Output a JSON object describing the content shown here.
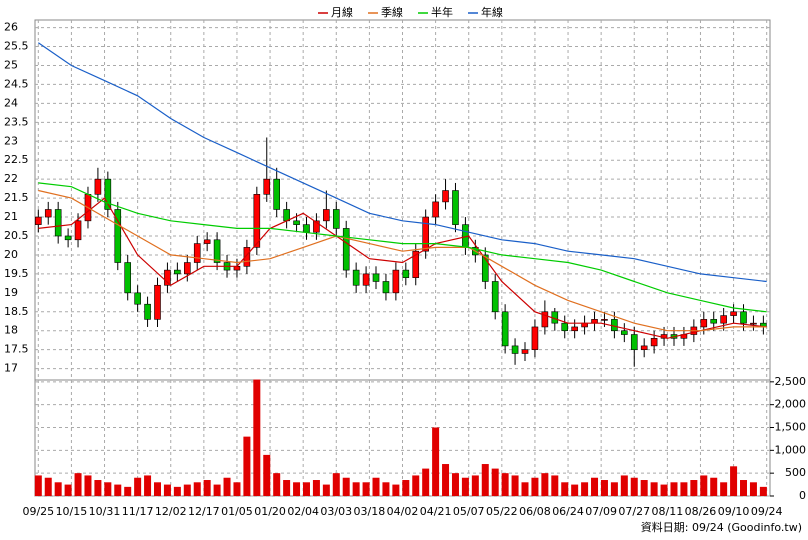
{
  "chart_data": {
    "type": "candlestick",
    "legend": "top",
    "grid": true,
    "footer": "資料日期: 09/24  (Goodinfo.tw)",
    "xlim": [
      -1,
      221
    ],
    "xticks": [
      {
        "value": 0,
        "label": "09/25"
      },
      {
        "value": 10,
        "label": "10/15"
      },
      {
        "value": 20,
        "label": "10/31"
      },
      {
        "value": 30,
        "label": "11/17"
      },
      {
        "value": 40,
        "label": "12/02"
      },
      {
        "value": 50,
        "label": "12/17"
      },
      {
        "value": 60,
        "label": "01/05"
      },
      {
        "value": 70,
        "label": "01/20"
      },
      {
        "value": 80,
        "label": "02/04"
      },
      {
        "value": 90,
        "label": "03/03"
      },
      {
        "value": 100,
        "label": "03/18"
      },
      {
        "value": 110,
        "label": "04/02"
      },
      {
        "value": 120,
        "label": "04/21"
      },
      {
        "value": 130,
        "label": "05/07"
      },
      {
        "value": 140,
        "label": "05/22"
      },
      {
        "value": 150,
        "label": "06/08"
      },
      {
        "value": 160,
        "label": "06/24"
      },
      {
        "value": 170,
        "label": "07/09"
      },
      {
        "value": 180,
        "label": "07/27"
      },
      {
        "value": 190,
        "label": "08/11"
      },
      {
        "value": 200,
        "label": "08/26"
      },
      {
        "value": 210,
        "label": "09/10"
      },
      {
        "value": 220,
        "label": "09/24"
      }
    ],
    "ylim": [
      16.7,
      26.2
    ],
    "yticks": [
      17,
      17.5,
      18,
      18.5,
      19,
      19.5,
      20,
      20.5,
      21,
      21.5,
      22,
      22.5,
      23,
      23.5,
      24,
      24.5,
      25,
      25.5,
      26
    ],
    "y2lim": [
      0,
      2540
    ],
    "y2ticks": [
      0,
      500,
      {
        "value": 1000,
        "label": "1,000"
      },
      {
        "value": 1500,
        "label": "1,500"
      },
      {
        "value": 2000,
        "label": "2,000"
      },
      {
        "value": 2500,
        "label": "2,500"
      }
    ],
    "candles": {
      "up_color": "#ff0000",
      "down_color": "#00c000",
      "x": [
        0,
        3,
        6,
        9,
        12,
        15,
        18,
        21,
        24,
        27,
        30,
        33,
        36,
        39,
        42,
        45,
        48,
        51,
        54,
        57,
        60,
        63,
        66,
        69,
        72,
        75,
        78,
        81,
        84,
        87,
        90,
        93,
        96,
        99,
        102,
        105,
        108,
        111,
        114,
        117,
        120,
        123,
        126,
        129,
        132,
        135,
        138,
        141,
        144,
        147,
        150,
        153,
        156,
        159,
        162,
        165,
        168,
        171,
        174,
        177,
        180,
        183,
        186,
        189,
        192,
        195,
        198,
        201,
        204,
        207,
        210,
        213,
        216,
        219
      ],
      "open": [
        20.8,
        21.0,
        21.2,
        20.5,
        20.4,
        20.9,
        21.6,
        22.0,
        21.2,
        19.8,
        19.0,
        18.7,
        18.3,
        19.2,
        19.6,
        19.5,
        19.8,
        20.3,
        20.4,
        19.8,
        19.6,
        19.7,
        20.2,
        21.6,
        22.0,
        21.2,
        20.9,
        20.8,
        20.6,
        20.9,
        21.2,
        20.7,
        19.6,
        19.2,
        19.5,
        19.3,
        19.0,
        19.6,
        19.4,
        20.1,
        21.0,
        21.4,
        21.7,
        20.8,
        20.2,
        20.0,
        19.3,
        18.5,
        17.6,
        17.4,
        17.5,
        18.1,
        18.5,
        18.2,
        18.0,
        18.1,
        18.2,
        18.3,
        18.3,
        18.0,
        17.9,
        17.5,
        17.6,
        17.8,
        17.9,
        17.8,
        17.9,
        18.1,
        18.3,
        18.2,
        18.4,
        18.5,
        18.2,
        18.2
      ],
      "high": [
        21.2,
        21.4,
        21.4,
        20.7,
        21.1,
        21.8,
        22.3,
        22.2,
        21.4,
        20.0,
        19.2,
        18.9,
        19.4,
        19.8,
        19.8,
        20.0,
        20.5,
        20.6,
        20.6,
        20.0,
        19.9,
        20.4,
        21.8,
        23.1,
        22.3,
        21.4,
        21.1,
        21.0,
        21.1,
        21.7,
        21.4,
        20.9,
        19.8,
        19.7,
        19.7,
        19.5,
        19.8,
        19.8,
        20.3,
        21.2,
        21.6,
        22.0,
        21.9,
        21.0,
        20.4,
        20.2,
        19.5,
        18.7,
        17.8,
        17.7,
        18.3,
        18.8,
        18.6,
        18.4,
        18.3,
        18.4,
        18.5,
        18.5,
        18.5,
        18.2,
        18.1,
        17.8,
        18.0,
        18.1,
        18.1,
        18.1,
        18.3,
        18.5,
        18.5,
        18.6,
        18.7,
        18.7,
        18.4,
        18.4
      ],
      "low": [
        20.6,
        20.8,
        20.3,
        20.2,
        20.2,
        20.7,
        21.4,
        21.0,
        19.6,
        18.8,
        18.5,
        18.1,
        18.1,
        19.0,
        19.3,
        19.3,
        19.6,
        20.1,
        19.6,
        19.4,
        19.4,
        19.5,
        20.0,
        21.4,
        21.0,
        20.7,
        20.6,
        20.4,
        20.4,
        20.7,
        20.5,
        19.4,
        19.0,
        19.0,
        19.1,
        18.8,
        18.8,
        19.2,
        19.2,
        19.9,
        20.8,
        21.2,
        20.6,
        20.0,
        19.8,
        19.1,
        18.3,
        17.4,
        17.1,
        17.2,
        17.3,
        17.9,
        18.0,
        17.8,
        17.8,
        17.9,
        18.0,
        18.1,
        17.8,
        17.7,
        17.05,
        17.3,
        17.4,
        17.6,
        17.6,
        17.6,
        17.7,
        17.9,
        18.0,
        18.0,
        18.2,
        18.0,
        18.0,
        17.9
      ],
      "close": [
        21.0,
        21.2,
        20.5,
        20.4,
        20.9,
        21.6,
        22.0,
        21.2,
        19.8,
        19.0,
        18.7,
        18.3,
        19.2,
        19.6,
        19.5,
        19.8,
        20.3,
        20.4,
        19.8,
        19.6,
        19.7,
        20.2,
        21.6,
        22.0,
        21.2,
        20.9,
        20.8,
        20.6,
        20.9,
        21.2,
        20.7,
        19.6,
        19.2,
        19.5,
        19.3,
        19.0,
        19.6,
        19.4,
        20.1,
        21.0,
        21.4,
        21.7,
        20.8,
        20.2,
        20.0,
        19.3,
        18.5,
        17.6,
        17.4,
        17.5,
        18.1,
        18.5,
        18.2,
        18.0,
        18.1,
        18.2,
        18.3,
        18.3,
        18.0,
        17.9,
        17.5,
        17.6,
        17.8,
        17.9,
        17.8,
        17.9,
        18.1,
        18.3,
        18.2,
        18.4,
        18.5,
        18.2,
        18.2,
        18.1
      ]
    },
    "volume": {
      "color": "#e00000",
      "axis": "y2",
      "values": [
        450,
        400,
        300,
        250,
        500,
        450,
        350,
        300,
        250,
        200,
        400,
        450,
        300,
        250,
        200,
        250,
        300,
        350,
        250,
        400,
        300,
        1300,
        2550,
        900,
        500,
        350,
        300,
        300,
        350,
        250,
        500,
        400,
        300,
        300,
        400,
        300,
        250,
        350,
        450,
        600,
        1500,
        700,
        500,
        400,
        450,
        700,
        600,
        500,
        450,
        300,
        400,
        500,
        450,
        300,
        250,
        300,
        400,
        350,
        300,
        450,
        400,
        350,
        300,
        250,
        300,
        300,
        350,
        450,
        400,
        300,
        650,
        350,
        300,
        200
      ]
    },
    "x": [
      0,
      10,
      20,
      30,
      40,
      50,
      60,
      70,
      80,
      90,
      100,
      110,
      120,
      130,
      140,
      150,
      160,
      170,
      180,
      190,
      200,
      210,
      220
    ],
    "series": [
      {
        "name": "月線",
        "color": "#cc0000",
        "values": [
          20.7,
          20.8,
          21.5,
          20.0,
          19.2,
          19.7,
          19.7,
          20.7,
          21.1,
          20.5,
          19.9,
          19.8,
          20.3,
          20.5,
          19.3,
          18.5,
          18.2,
          18.2,
          18.0,
          17.8,
          18.0,
          18.2,
          18.1
        ]
      },
      {
        "name": "季線",
        "color": "#e07020",
        "values": [
          21.7,
          21.5,
          21.0,
          20.5,
          20.0,
          19.9,
          19.8,
          19.9,
          20.2,
          20.5,
          20.3,
          20.1,
          20.2,
          20.2,
          19.7,
          19.2,
          18.8,
          18.5,
          18.2,
          18.0,
          18.0,
          18.1,
          18.1
        ]
      },
      {
        "name": "半年",
        "color": "#00cc00",
        "values": [
          21.9,
          21.8,
          21.4,
          21.1,
          20.9,
          20.8,
          20.7,
          20.7,
          20.6,
          20.5,
          20.4,
          20.3,
          20.3,
          20.2,
          20.0,
          19.9,
          19.8,
          19.6,
          19.3,
          19.0,
          18.8,
          18.6,
          18.5
        ]
      },
      {
        "name": "年線",
        "color": "#1a5fc8",
        "values": [
          25.6,
          25.0,
          24.6,
          24.2,
          23.6,
          23.1,
          22.7,
          22.3,
          21.9,
          21.5,
          21.1,
          20.9,
          20.8,
          20.6,
          20.4,
          20.3,
          20.1,
          20.0,
          19.9,
          19.7,
          19.5,
          19.4,
          19.3
        ]
      }
    ]
  }
}
